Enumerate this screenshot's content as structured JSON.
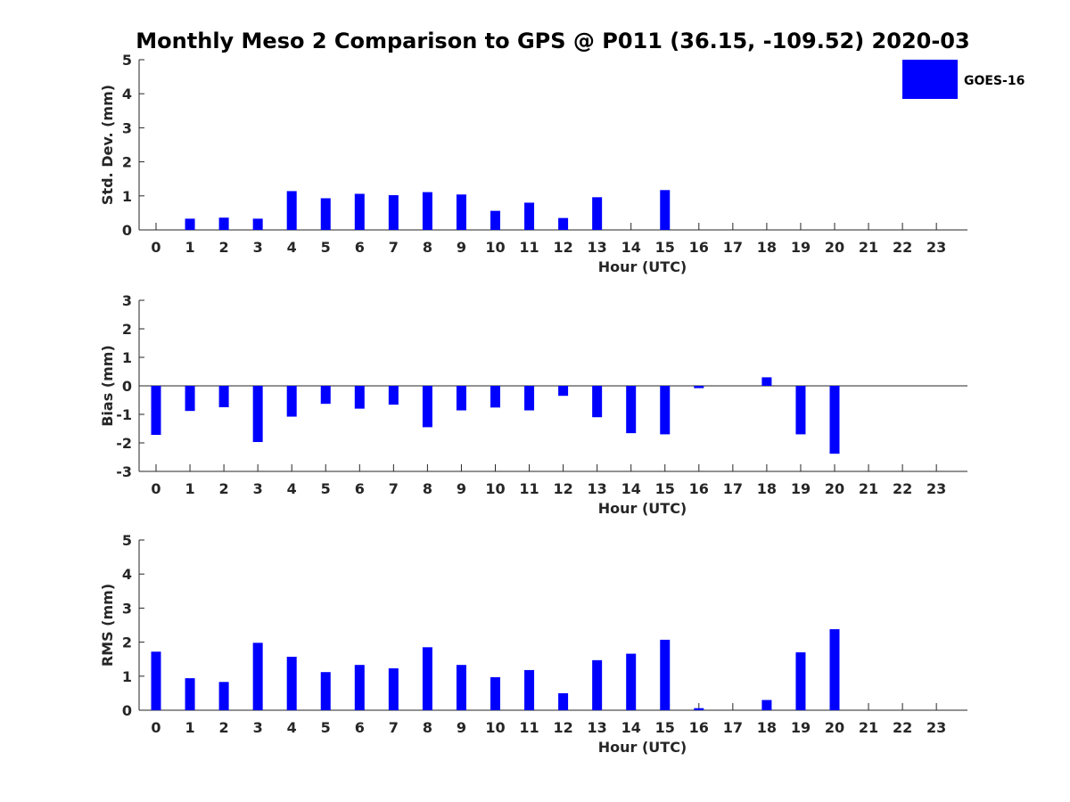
{
  "title": "Monthly Meso 2 Comparison to GPS @ P011 (36.15, -109.52) 2020-03",
  "legend": {
    "label": "GOES-16",
    "color": "#0000ff"
  },
  "chart_data": [
    {
      "type": "bar",
      "categories": [
        "0",
        "1",
        "2",
        "3",
        "4",
        "5",
        "6",
        "7",
        "8",
        "9",
        "10",
        "11",
        "12",
        "13",
        "14",
        "15",
        "16",
        "17",
        "18",
        "19",
        "20",
        "21",
        "22",
        "23"
      ],
      "series": [
        {
          "name": "GOES-16",
          "values": [
            null,
            0.33,
            0.36,
            0.33,
            1.14,
            0.93,
            1.06,
            1.02,
            1.11,
            1.04,
            0.56,
            0.8,
            0.35,
            0.96,
            null,
            1.17,
            null,
            null,
            null,
            null,
            null,
            null,
            null,
            null
          ]
        }
      ],
      "xlabel": "Hour (UTC)",
      "ylabel": "Std. Dev. (mm)",
      "ylim": [
        0,
        5
      ],
      "yticks": [
        "0",
        "1",
        "2",
        "3",
        "4",
        "5"
      ],
      "legend_position": "top-right"
    },
    {
      "type": "bar",
      "categories": [
        "0",
        "1",
        "2",
        "3",
        "4",
        "5",
        "6",
        "7",
        "8",
        "9",
        "10",
        "11",
        "12",
        "13",
        "14",
        "15",
        "16",
        "17",
        "18",
        "19",
        "20",
        "21",
        "22",
        "23"
      ],
      "series": [
        {
          "name": "GOES-16",
          "values": [
            -1.72,
            -0.88,
            -0.75,
            -1.97,
            -1.08,
            -0.63,
            -0.8,
            -0.66,
            -1.45,
            -0.86,
            -0.76,
            -0.86,
            -0.35,
            -1.1,
            -1.66,
            -1.7,
            -0.08,
            null,
            0.3,
            -1.7,
            -2.38,
            null,
            null,
            null
          ]
        }
      ],
      "xlabel": "Hour (UTC)",
      "ylabel": "Bias (mm)",
      "ylim": [
        -3,
        3
      ],
      "yticks": [
        "-3",
        "-2",
        "-1",
        "0",
        "1",
        "2",
        "3"
      ]
    },
    {
      "type": "bar",
      "categories": [
        "0",
        "1",
        "2",
        "3",
        "4",
        "5",
        "6",
        "7",
        "8",
        "9",
        "10",
        "11",
        "12",
        "13",
        "14",
        "15",
        "16",
        "17",
        "18",
        "19",
        "20",
        "21",
        "22",
        "23"
      ],
      "series": [
        {
          "name": "GOES-16",
          "values": [
            1.72,
            0.94,
            0.83,
            1.98,
            1.57,
            1.12,
            1.33,
            1.23,
            1.85,
            1.33,
            0.97,
            1.18,
            0.5,
            1.47,
            1.66,
            2.07,
            0.06,
            null,
            0.3,
            1.7,
            2.38,
            null,
            null,
            null
          ]
        }
      ],
      "xlabel": "Hour (UTC)",
      "ylabel": "RMS (mm)",
      "ylim": [
        0,
        5
      ],
      "yticks": [
        "0",
        "1",
        "2",
        "3",
        "4",
        "5"
      ]
    }
  ]
}
